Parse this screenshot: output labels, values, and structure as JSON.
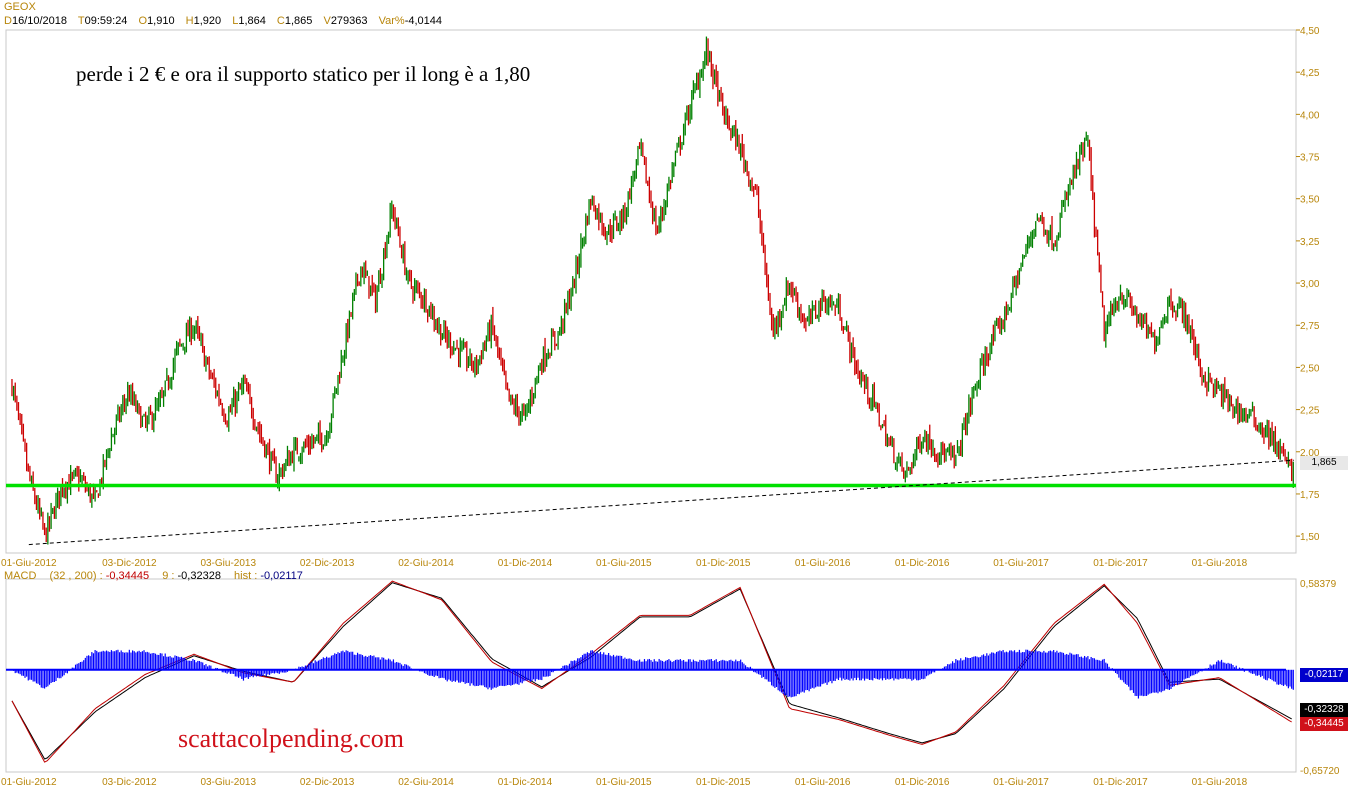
{
  "header": {
    "symbol": "GEOX",
    "d_label": "D",
    "date": "16/10/2018",
    "t_label": "T",
    "time": "09:59:24",
    "o_label": "O",
    "open": "1,910",
    "h_label": "H",
    "high": "1,920",
    "l_label": "L",
    "low": "1,864",
    "c_label": "C",
    "close": "1,865",
    "v_label": "V",
    "volume": "279363",
    "var_label": "Var%",
    "var": "-4,0144"
  },
  "annotation": "perde i 2 € e ora il supporto statico per il long è a 1,80",
  "watermark": "scattacolpending.com",
  "price_tag": "1,865",
  "macd_header": {
    "name": "MACD",
    "params": "(32 , 200) :",
    "macd": "-0,34445",
    "signal_label": "9 :",
    "signal": "-0,32328",
    "hist_label": "hist :",
    "hist": "-0,02117"
  },
  "macd_tags": {
    "hist": "-0,02117",
    "signal": "-0,32328",
    "macd": "-0,34445"
  },
  "colors": {
    "up": "#008000",
    "down": "#cc0000",
    "support": "#00e000",
    "hist": "#0000ff",
    "axis": "#b8860b"
  },
  "chart_data": [
    {
      "type": "candlestick",
      "x_ticks": [
        "01-Giu-2012",
        "03-Dic-2012",
        "03-Giu-2013",
        "02-Dic-2013",
        "02-Giu-2014",
        "01-Dic-2014",
        "01-Giu-2015",
        "01-Dic-2015",
        "01-Giu-2016",
        "01-Dic-2016",
        "01-Giu-2017",
        "01-Dic-2017",
        "01-Giu-2018"
      ],
      "y_ticks": [
        "4,50",
        "4,25",
        "4,00",
        "3,75",
        "3,50",
        "3,25",
        "3,00",
        "2,75",
        "2,50",
        "2,25",
        "2,00",
        "1,75",
        "1,50"
      ],
      "ylim": [
        1.4,
        4.5
      ],
      "close_path": [
        [
          "2012-05-01",
          2.4
        ],
        [
          "2012-06-01",
          1.85
        ],
        [
          "2012-07-01",
          1.5
        ],
        [
          "2012-08-01",
          1.8
        ],
        [
          "2012-09-01",
          1.85
        ],
        [
          "2012-10-01",
          1.7
        ],
        [
          "2012-11-01",
          2.1
        ],
        [
          "2012-12-01",
          2.35
        ],
        [
          "2013-01-01",
          2.15
        ],
        [
          "2013-02-01",
          2.3
        ],
        [
          "2013-03-01",
          2.6
        ],
        [
          "2013-04-01",
          2.75
        ],
        [
          "2013-05-01",
          2.45
        ],
        [
          "2013-06-01",
          2.2
        ],
        [
          "2013-07-01",
          2.4
        ],
        [
          "2013-08-01",
          2.1
        ],
        [
          "2013-09-01",
          1.85
        ],
        [
          "2013-10-01",
          2.0
        ],
        [
          "2013-11-01",
          2.05
        ],
        [
          "2013-12-01",
          2.1
        ],
        [
          "2014-01-01",
          2.6
        ],
        [
          "2014-02-01",
          3.1
        ],
        [
          "2014-03-01",
          2.9
        ],
        [
          "2014-04-01",
          3.45
        ],
        [
          "2014-05-01",
          3.0
        ],
        [
          "2014-06-01",
          2.9
        ],
        [
          "2014-07-01",
          2.7
        ],
        [
          "2014-08-01",
          2.6
        ],
        [
          "2014-09-01",
          2.5
        ],
        [
          "2014-10-01",
          2.75
        ],
        [
          "2014-11-01",
          2.3
        ],
        [
          "2014-12-01",
          2.2
        ],
        [
          "2015-01-01",
          2.55
        ],
        [
          "2015-02-01",
          2.7
        ],
        [
          "2015-03-01",
          3.0
        ],
        [
          "2015-04-01",
          3.5
        ],
        [
          "2015-05-01",
          3.3
        ],
        [
          "2015-06-01",
          3.4
        ],
        [
          "2015-07-01",
          3.8
        ],
        [
          "2015-08-01",
          3.3
        ],
        [
          "2015-09-01",
          3.7
        ],
        [
          "2015-10-01",
          4.05
        ],
        [
          "2015-11-01",
          4.38
        ],
        [
          "2015-12-01",
          4.0
        ],
        [
          "2016-01-01",
          3.8
        ],
        [
          "2016-02-01",
          3.5
        ],
        [
          "2016-03-01",
          2.7
        ],
        [
          "2016-04-01",
          3.0
        ],
        [
          "2016-05-01",
          2.75
        ],
        [
          "2016-06-01",
          2.9
        ],
        [
          "2016-07-01",
          2.85
        ],
        [
          "2016-08-01",
          2.5
        ],
        [
          "2016-09-01",
          2.3
        ],
        [
          "2016-10-01",
          2.05
        ],
        [
          "2016-11-01",
          1.85
        ],
        [
          "2016-12-01",
          2.1
        ],
        [
          "2017-01-01",
          2.0
        ],
        [
          "2017-02-01",
          1.95
        ],
        [
          "2017-03-01",
          2.3
        ],
        [
          "2017-04-01",
          2.6
        ],
        [
          "2017-05-01",
          2.8
        ],
        [
          "2017-06-01",
          3.1
        ],
        [
          "2017-07-01",
          3.4
        ],
        [
          "2017-08-01",
          3.25
        ],
        [
          "2017-09-01",
          3.6
        ],
        [
          "2017-10-01",
          3.85
        ],
        [
          "2017-11-01",
          2.7
        ],
        [
          "2017-12-01",
          2.95
        ],
        [
          "2018-01-01",
          2.8
        ],
        [
          "2018-02-01",
          2.65
        ],
        [
          "2018-03-01",
          2.9
        ],
        [
          "2018-04-01",
          2.8
        ],
        [
          "2018-05-01",
          2.45
        ],
        [
          "2018-06-01",
          2.35
        ],
        [
          "2018-07-01",
          2.25
        ],
        [
          "2018-08-01",
          2.2
        ],
        [
          "2018-09-01",
          2.1
        ],
        [
          "2018-10-16",
          1.865
        ]
      ],
      "support_level": 1.8,
      "trendline": [
        [
          "2012-06-01",
          1.45
        ],
        [
          "2018-10-16",
          1.95
        ]
      ]
    },
    {
      "type": "line",
      "name": "MACD",
      "y_ticks": [
        "0,58379",
        "-0,65720"
      ],
      "ylim": [
        -0.6572,
        0.58379
      ],
      "x_ticks": [
        "01-Giu-2012",
        "03-Dic-2012",
        "03-Giu-2013",
        "02-Dic-2013",
        "02-Giu-2014",
        "01-Dic-2014",
        "01-Giu-2015",
        "01-Dic-2015",
        "01-Giu-2016",
        "01-Dic-2016",
        "01-Giu-2017",
        "01-Dic-2017",
        "01-Giu-2018"
      ],
      "macd": [
        [
          "2012-05-01",
          -0.2
        ],
        [
          "2012-07-01",
          -0.6
        ],
        [
          "2012-10-01",
          -0.25
        ],
        [
          "2013-01-01",
          -0.03
        ],
        [
          "2013-04-01",
          0.1
        ],
        [
          "2013-07-01",
          -0.02
        ],
        [
          "2013-10-01",
          -0.08
        ],
        [
          "2014-01-01",
          0.3
        ],
        [
          "2014-04-01",
          0.57
        ],
        [
          "2014-07-01",
          0.45
        ],
        [
          "2014-10-01",
          0.05
        ],
        [
          "2015-01-01",
          -0.12
        ],
        [
          "2015-04-01",
          0.1
        ],
        [
          "2015-07-01",
          0.35
        ],
        [
          "2015-10-01",
          0.35
        ],
        [
          "2016-01-01",
          0.53
        ],
        [
          "2016-04-01",
          -0.25
        ],
        [
          "2016-07-01",
          -0.32
        ],
        [
          "2016-10-01",
          -0.42
        ],
        [
          "2016-12-01",
          -0.48
        ],
        [
          "2017-02-01",
          -0.4
        ],
        [
          "2017-05-01",
          -0.1
        ],
        [
          "2017-08-01",
          0.3
        ],
        [
          "2017-11-01",
          0.55
        ],
        [
          "2018-01-01",
          0.3
        ],
        [
          "2018-03-01",
          -0.1
        ],
        [
          "2018-06-01",
          -0.05
        ],
        [
          "2018-10-16",
          -0.34445
        ]
      ],
      "signal": [
        [
          "2012-05-01",
          -0.2
        ],
        [
          "2012-07-01",
          -0.58
        ],
        [
          "2012-10-01",
          -0.27
        ],
        [
          "2013-01-01",
          -0.05
        ],
        [
          "2013-04-01",
          0.09
        ],
        [
          "2013-07-01",
          -0.01
        ],
        [
          "2013-10-01",
          -0.08
        ],
        [
          "2014-01-01",
          0.28
        ],
        [
          "2014-04-01",
          0.56
        ],
        [
          "2014-07-01",
          0.46
        ],
        [
          "2014-10-01",
          0.07
        ],
        [
          "2015-01-01",
          -0.11
        ],
        [
          "2015-04-01",
          0.08
        ],
        [
          "2015-07-01",
          0.34
        ],
        [
          "2015-10-01",
          0.34
        ],
        [
          "2016-01-01",
          0.52
        ],
        [
          "2016-04-01",
          -0.22
        ],
        [
          "2016-07-01",
          -0.31
        ],
        [
          "2016-10-01",
          -0.41
        ],
        [
          "2016-12-01",
          -0.47
        ],
        [
          "2017-02-01",
          -0.41
        ],
        [
          "2017-05-01",
          -0.12
        ],
        [
          "2017-08-01",
          0.28
        ],
        [
          "2017-11-01",
          0.54
        ],
        [
          "2018-01-01",
          0.33
        ],
        [
          "2018-03-01",
          -0.08
        ],
        [
          "2018-06-01",
          -0.06
        ],
        [
          "2018-10-16",
          -0.32328
        ]
      ]
    }
  ]
}
